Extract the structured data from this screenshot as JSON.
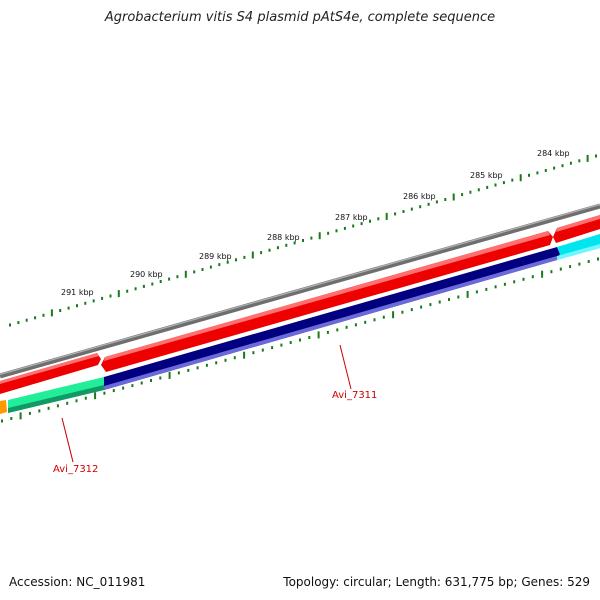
{
  "title": "Agrobacterium vitis S4 plasmid pAtS4e, complete sequence",
  "scale_labels": [
    "284 kbp",
    "285 kbp",
    "286 kbp",
    "287 kbp",
    "288 kbp",
    "289 kbp",
    "290 kbp",
    "291 kbp"
  ],
  "gene_labels": [
    "Avi_7311",
    "Avi_7312"
  ],
  "footer": {
    "accession": "Accession: NC_011981",
    "summary": "Topology: circular; Length: 631,775 bp; Genes: 529"
  },
  "colors": {
    "backbone": "#808080",
    "forward_cds": "#ee0000",
    "reverse_cds_7311": "#000080",
    "reverse_cds_7312": "#22ee99",
    "reverse_cds_right": "#00e5ee",
    "small_feature": "#ff9900",
    "ticks": "#1a7a1a",
    "label_text": "#cc0000"
  }
}
